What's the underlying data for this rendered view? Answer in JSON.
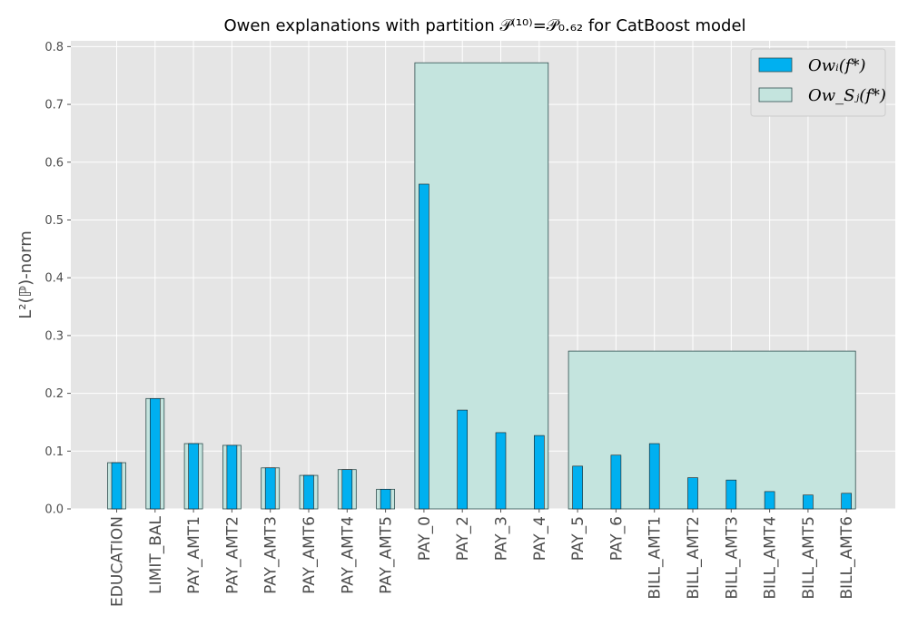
{
  "chart_data": {
    "type": "bar",
    "title": "Owen explanations with partition 𝒫⁽¹⁰⁾=𝒫₀.₆₂ for CatBoost model",
    "ylabel": "L²(ℙ)-norm",
    "xlabel": "",
    "ylim": [
      0,
      0.81
    ],
    "yticks": [
      "0.0",
      "0.1",
      "0.2",
      "0.3",
      "0.4",
      "0.5",
      "0.6",
      "0.7",
      "0.8"
    ],
    "grid": true,
    "legend_position": "top-right",
    "categories": [
      "EDUCATION",
      "LIMIT_BAL",
      "PAY_AMT1",
      "PAY_AMT2",
      "PAY_AMT3",
      "PAY_AMT6",
      "PAY_AMT4",
      "PAY_AMT5",
      "PAY_0",
      "PAY_2",
      "PAY_3",
      "PAY_4",
      "PAY_5",
      "PAY_6",
      "BILL_AMT1",
      "BILL_AMT2",
      "BILL_AMT3",
      "BILL_AMT4",
      "BILL_AMT5",
      "BILL_AMT6"
    ],
    "series": [
      {
        "name": "Owᵢ(f*)",
        "color": "#00b0f0",
        "values": [
          0.08,
          0.191,
          0.113,
          0.11,
          0.071,
          0.058,
          0.068,
          0.034,
          0.562,
          0.171,
          0.132,
          0.127,
          0.074,
          0.093,
          0.113,
          0.054,
          0.05,
          0.03,
          0.024,
          0.027
        ]
      },
      {
        "name": "Ow_Sⱼ(f*)",
        "color": "#c4e4de",
        "groups": [
          {
            "members": [
              "EDUCATION"
            ],
            "value": 0.08
          },
          {
            "members": [
              "LIMIT_BAL"
            ],
            "value": 0.191
          },
          {
            "members": [
              "PAY_AMT1"
            ],
            "value": 0.113
          },
          {
            "members": [
              "PAY_AMT2"
            ],
            "value": 0.11
          },
          {
            "members": [
              "PAY_AMT3"
            ],
            "value": 0.071
          },
          {
            "members": [
              "PAY_AMT6"
            ],
            "value": 0.058
          },
          {
            "members": [
              "PAY_AMT4"
            ],
            "value": 0.068
          },
          {
            "members": [
              "PAY_AMT5"
            ],
            "value": 0.034
          },
          {
            "members": [
              "PAY_0",
              "PAY_2",
              "PAY_3",
              "PAY_4"
            ],
            "value": 0.772
          },
          {
            "members": [
              "PAY_5",
              "PAY_6",
              "BILL_AMT1",
              "BILL_AMT2",
              "BILL_AMT3",
              "BILL_AMT4",
              "BILL_AMT5",
              "BILL_AMT6"
            ],
            "value": 0.273
          }
        ]
      }
    ]
  }
}
